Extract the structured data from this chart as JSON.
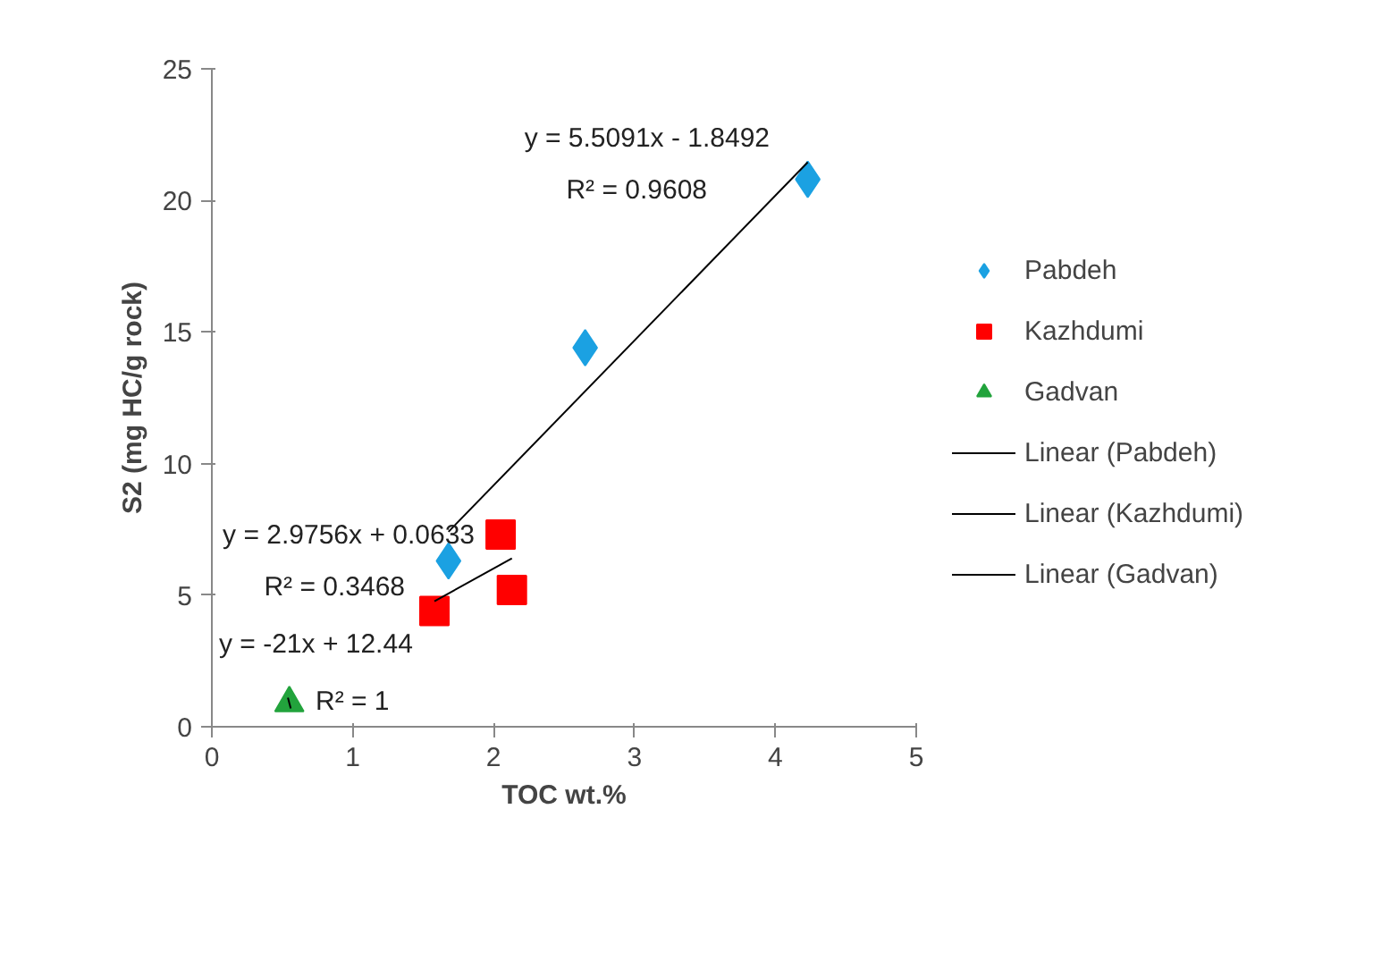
{
  "chart_data": {
    "type": "scatter",
    "xlabel": "TOC wt.%",
    "ylabel": "S2 (mg HC/g rock)",
    "xlim": [
      0,
      5
    ],
    "ylim": [
      0,
      25
    ],
    "xticks": [
      0,
      1,
      2,
      3,
      4,
      5
    ],
    "yticks": [
      0,
      5,
      10,
      15,
      20,
      25
    ],
    "grid": false,
    "legend": "right",
    "series": [
      {
        "name": "Pabdeh",
        "color": "#1ba1e2",
        "marker": "diamond",
        "x": [
          1.68,
          2.65,
          4.23
        ],
        "values": [
          6.3,
          14.4,
          20.8
        ]
      },
      {
        "name": "Kazhdumi",
        "color": "#ff0000",
        "marker": "square",
        "x": [
          1.58,
          2.05,
          2.13
        ],
        "values": [
          4.4,
          7.3,
          5.2
        ]
      },
      {
        "name": "Gadvan",
        "color": "#22a33c",
        "marker": "triangle",
        "x": [
          0.55
        ],
        "values": [
          0.9
        ]
      },
      {
        "name": "Linear (Pabdeh)",
        "type": "line",
        "color": "#000000",
        "marker": "none",
        "x": [
          1.68,
          4.23
        ],
        "values": [
          7.41,
          21.45
        ]
      },
      {
        "name": "Linear (Kazhdumi)",
        "type": "line",
        "color": "#000000",
        "marker": "none",
        "x": [
          1.58,
          2.13
        ],
        "values": [
          4.77,
          6.4
        ]
      },
      {
        "name": "Linear (Gadvan)",
        "type": "line",
        "color": "#000000",
        "marker": "none",
        "x": [
          0.54,
          0.56
        ],
        "values": [
          1.1,
          0.7
        ]
      }
    ],
    "annotations": [
      "y = 5.5091x - 1.8492",
      "R² = 0.9608",
      "y = 2.9756x + 0.0633",
      "R² = 0.3468",
      "y = -21x + 12.44",
      "R² = 1"
    ]
  }
}
